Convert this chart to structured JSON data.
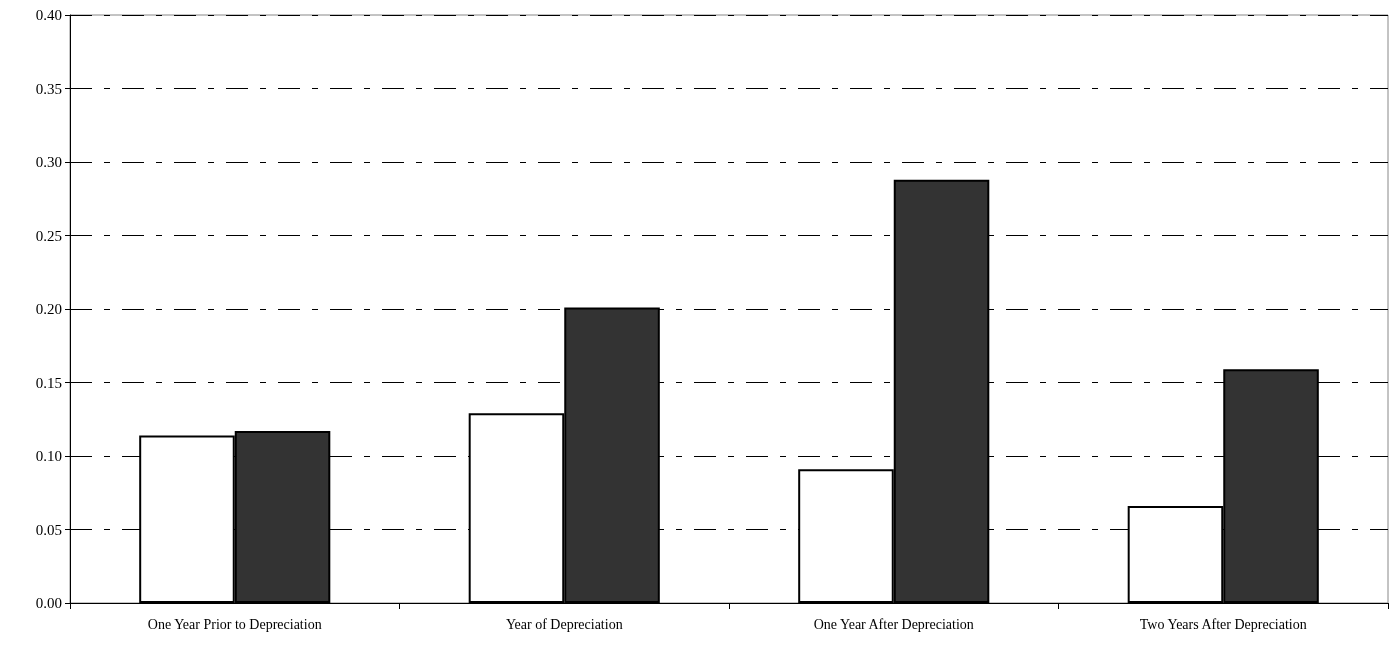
{
  "chart_data": {
    "type": "bar",
    "categories": [
      "One Year Prior to Depreciation",
      "Year of Depreciation",
      "One Year After Depreciation",
      "Two Years After Depreciation"
    ],
    "series": [
      {
        "color": "#ffffff",
        "values": [
          0.114,
          0.129,
          0.091,
          0.066
        ]
      },
      {
        "color": "#333333",
        "values": [
          0.117,
          0.201,
          0.288,
          0.159
        ]
      }
    ],
    "ylim": [
      0,
      0.4
    ],
    "yticks": [
      {
        "value": 0,
        "label": "0.00"
      },
      {
        "value": 0.05,
        "label": "0.05"
      },
      {
        "value": 0.1,
        "label": "0.10"
      },
      {
        "value": 0.15,
        "label": "0.15"
      },
      {
        "value": 0.2,
        "label": "0.20"
      },
      {
        "value": 0.25,
        "label": "0.25"
      },
      {
        "value": 0.3,
        "label": "0.30"
      },
      {
        "value": 0.35,
        "label": "0.35"
      },
      {
        "value": 0.4,
        "label": "0.40"
      }
    ],
    "grid": "y"
  }
}
